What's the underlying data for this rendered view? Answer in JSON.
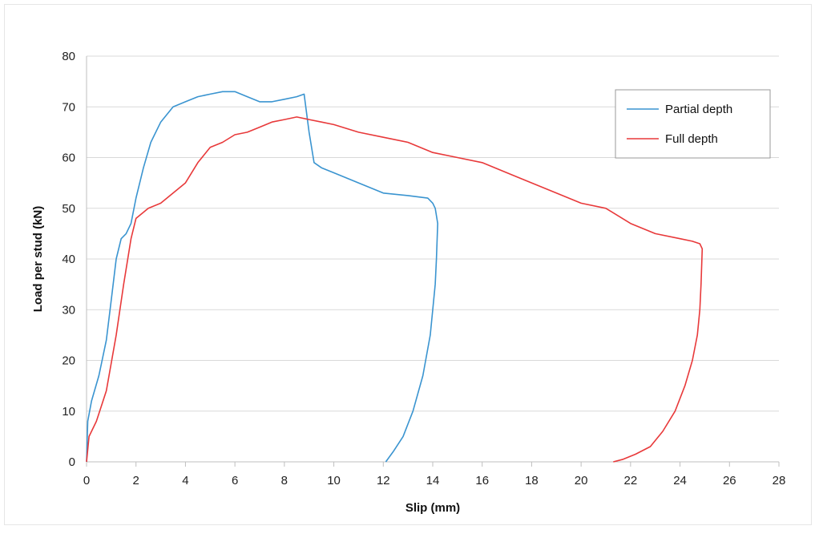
{
  "chart_data": {
    "type": "line",
    "title": "",
    "xlabel": "Slip (mm)",
    "ylabel": "Load per stud (kN)",
    "xlim": [
      0,
      28
    ],
    "ylim": [
      0,
      80
    ],
    "x_ticks": [
      0,
      2,
      4,
      6,
      8,
      10,
      12,
      14,
      16,
      18,
      20,
      22,
      24,
      26,
      28
    ],
    "y_ticks": [
      0,
      10,
      20,
      30,
      40,
      50,
      60,
      70,
      80
    ],
    "grid": "horizontal",
    "legend_position": "top-right",
    "series": [
      {
        "name": "Partial depth",
        "color": "#3a94d0",
        "x": [
          0,
          0.05,
          0.2,
          0.5,
          0.8,
          1.0,
          1.2,
          1.4,
          1.6,
          1.8,
          2.0,
          2.3,
          2.6,
          3.0,
          3.5,
          4.0,
          4.5,
          5.0,
          5.5,
          6.0,
          6.5,
          7.0,
          7.5,
          8.0,
          8.5,
          8.8,
          9.0,
          9.2,
          9.5,
          10.0,
          11.0,
          12.0,
          13.0,
          13.8,
          14.0,
          14.1,
          14.2,
          14.15,
          14.1,
          14.0,
          13.9,
          13.6,
          13.2,
          12.8,
          12.4,
          12.1
        ],
        "y": [
          0,
          8,
          12,
          17,
          24,
          32,
          40,
          44,
          45,
          47,
          52,
          58,
          63,
          67,
          70,
          71,
          72,
          72.5,
          73,
          73,
          72,
          71,
          71,
          71.5,
          72,
          72.5,
          65,
          59,
          58,
          57,
          55,
          53,
          52.5,
          52,
          51,
          50,
          47,
          40,
          35,
          30,
          25,
          17,
          10,
          5,
          2,
          0
        ]
      },
      {
        "name": "Full depth",
        "color": "#e8393a",
        "x": [
          0,
          0.1,
          0.4,
          0.8,
          1.2,
          1.5,
          1.8,
          2.0,
          2.5,
          3.0,
          3.5,
          4.0,
          4.5,
          5.0,
          5.5,
          6.0,
          6.5,
          7.0,
          7.5,
          8.0,
          8.5,
          9.0,
          9.5,
          10.0,
          11.0,
          12.0,
          13.0,
          14.0,
          15.0,
          16.0,
          17.0,
          18.0,
          19.0,
          20.0,
          21.0,
          22.0,
          23.0,
          24.0,
          24.5,
          24.8,
          24.9,
          24.85,
          24.8,
          24.7,
          24.5,
          24.2,
          23.8,
          23.3,
          22.8,
          22.2,
          21.7,
          21.3
        ],
        "y": [
          0,
          5,
          8,
          14,
          25,
          35,
          44,
          48,
          50,
          51,
          53,
          55,
          59,
          62,
          63,
          64.5,
          65,
          66,
          67,
          67.5,
          68,
          67.5,
          67,
          66.5,
          65,
          64,
          63,
          61,
          60,
          59,
          57,
          55,
          53,
          51,
          50,
          47,
          45,
          44,
          43.5,
          43,
          42,
          35,
          30,
          25,
          20,
          15,
          10,
          6,
          3,
          1.5,
          0.5,
          0
        ]
      }
    ]
  }
}
